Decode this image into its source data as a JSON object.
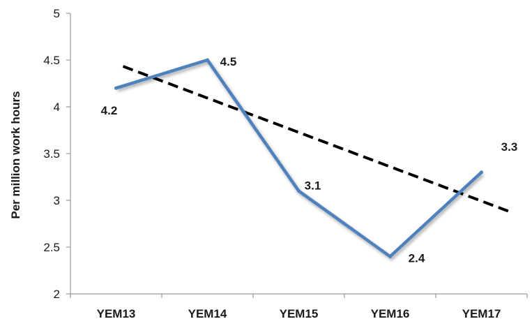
{
  "chart_data": {
    "type": "line",
    "categories": [
      "YEM13",
      "YEM14",
      "YEM15",
      "YEM16",
      "YEM17"
    ],
    "series": [
      {
        "values": [
          4.2,
          4.5,
          3.1,
          2.4,
          3.3
        ],
        "color": "#4f81bd"
      }
    ],
    "data_labels": [
      "4.2",
      "4.5",
      "3.1",
      "2.4",
      "3.3"
    ],
    "trendline": {
      "style": "dashed",
      "color": "#000000",
      "values": [
        4.46,
        4.1,
        3.73,
        3.36,
        2.99
      ]
    },
    "ylabel": "Per million work hours",
    "ylim": [
      2,
      5
    ],
    "yticks": [
      "2",
      "2.5",
      "3",
      "3.5",
      "4",
      "4.5",
      "5"
    ],
    "grid": false,
    "legend": "none"
  }
}
